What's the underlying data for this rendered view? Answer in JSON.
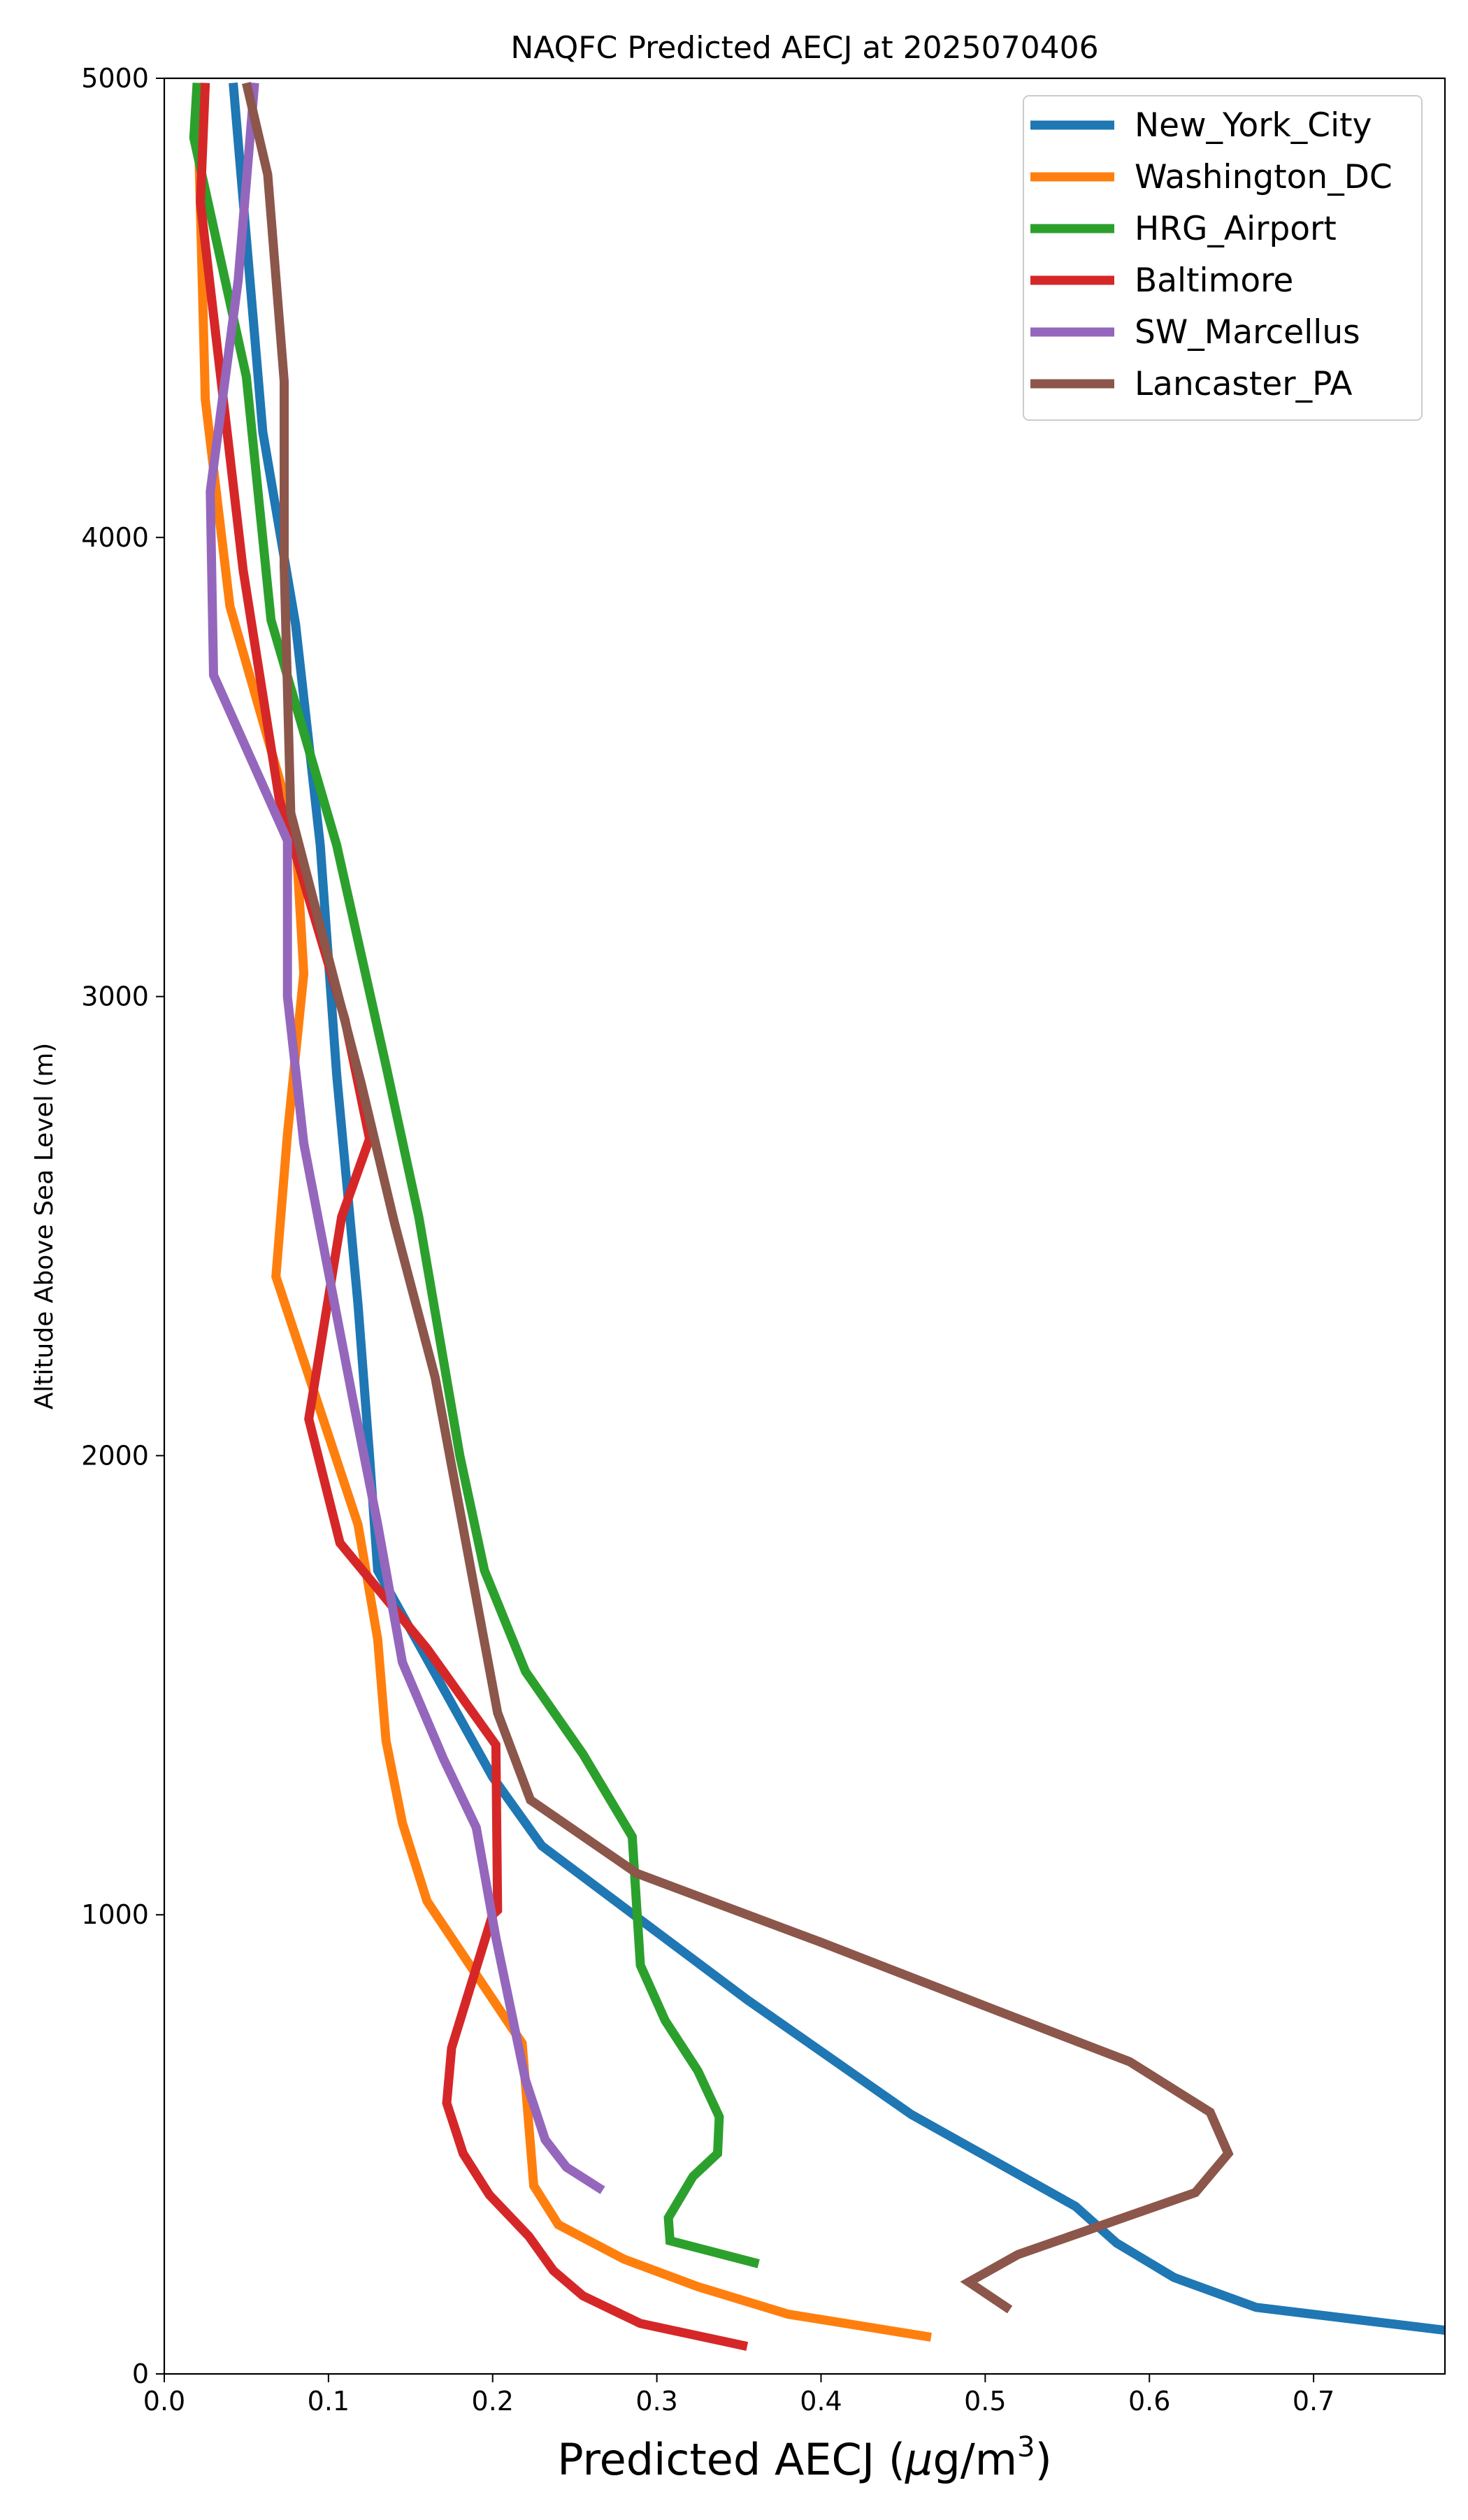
{
  "chart_data": {
    "type": "line",
    "title": "NAQFC Predicted AECJ at 2025070406",
    "xlabel": "Predicted AECJ (μg/m³)",
    "xlabel_prefix": "Predicted AECJ (",
    "xlabel_unit_mu": "μ",
    "xlabel_unit_g": "g/m",
    "xlabel_unit_exp": "3",
    "xlabel_suffix": ")",
    "ylabel": "Altitude Above Sea Level (m)",
    "xlim": [
      0.0,
      0.78
    ],
    "ylim": [
      0,
      5000
    ],
    "x_ticks": [
      0.0,
      0.1,
      0.2,
      0.3,
      0.4,
      0.5,
      0.6,
      0.7
    ],
    "x_tick_labels": [
      "0.0",
      "0.1",
      "0.2",
      "0.3",
      "0.4",
      "0.5",
      "0.6",
      "0.7"
    ],
    "y_ticks": [
      0,
      1000,
      2000,
      3000,
      4000,
      5000
    ],
    "y_tick_labels": [
      "0",
      "1000",
      "2000",
      "3000",
      "4000",
      "5000"
    ],
    "grid": false,
    "legend_position": "top-right",
    "series": [
      {
        "name": "New_York_City",
        "color": "#1f77b4",
        "points": [
          [
            0.78,
            95
          ],
          [
            0.665,
            145
          ],
          [
            0.615,
            210
          ],
          [
            0.58,
            285
          ],
          [
            0.555,
            365
          ],
          [
            0.455,
            565
          ],
          [
            0.355,
            815
          ],
          [
            0.23,
            1150
          ],
          [
            0.2,
            1300
          ],
          [
            0.13,
            1750
          ],
          [
            0.125,
            2000
          ],
          [
            0.118,
            2330
          ],
          [
            0.105,
            2830
          ],
          [
            0.095,
            3330
          ],
          [
            0.08,
            3810
          ],
          [
            0.06,
            4230
          ],
          [
            0.042,
            4990
          ]
        ]
      },
      {
        "name": "Washington_DC",
        "color": "#ff7f0e",
        "points": [
          [
            0.467,
            80
          ],
          [
            0.38,
            130
          ],
          [
            0.325,
            190
          ],
          [
            0.28,
            250
          ],
          [
            0.24,
            325
          ],
          [
            0.225,
            410
          ],
          [
            0.218,
            720
          ],
          [
            0.16,
            1030
          ],
          [
            0.145,
            1200
          ],
          [
            0.135,
            1380
          ],
          [
            0.13,
            1600
          ],
          [
            0.118,
            1850
          ],
          [
            0.068,
            2390
          ],
          [
            0.075,
            2700
          ],
          [
            0.085,
            3050
          ],
          [
            0.08,
            3350
          ],
          [
            0.04,
            3850
          ],
          [
            0.025,
            4300
          ],
          [
            0.02,
            4990
          ]
        ]
      },
      {
        "name": "HRG_Airport",
        "color": "#2ca02c",
        "points": [
          [
            0.362,
            240
          ],
          [
            0.308,
            290
          ],
          [
            0.307,
            340
          ],
          [
            0.322,
            430
          ],
          [
            0.337,
            480
          ],
          [
            0.338,
            560
          ],
          [
            0.325,
            660
          ],
          [
            0.305,
            770
          ],
          [
            0.29,
            890
          ],
          [
            0.285,
            1170
          ],
          [
            0.255,
            1350
          ],
          [
            0.22,
            1530
          ],
          [
            0.195,
            1750
          ],
          [
            0.18,
            2000
          ],
          [
            0.155,
            2520
          ],
          [
            0.135,
            2850
          ],
          [
            0.105,
            3330
          ],
          [
            0.065,
            3820
          ],
          [
            0.05,
            4350
          ],
          [
            0.018,
            4870
          ],
          [
            0.02,
            4990
          ]
        ]
      },
      {
        "name": "Baltimore",
        "color": "#d62728",
        "points": [
          [
            0.355,
            60
          ],
          [
            0.29,
            110
          ],
          [
            0.255,
            170
          ],
          [
            0.237,
            225
          ],
          [
            0.222,
            300
          ],
          [
            0.198,
            390
          ],
          [
            0.182,
            480
          ],
          [
            0.172,
            590
          ],
          [
            0.175,
            710
          ],
          [
            0.2,
            1000
          ],
          [
            0.203,
            1010
          ],
          [
            0.202,
            1370
          ],
          [
            0.16,
            1580
          ],
          [
            0.107,
            1810
          ],
          [
            0.088,
            2080
          ],
          [
            0.108,
            2520
          ],
          [
            0.125,
            2690
          ],
          [
            0.11,
            2950
          ],
          [
            0.07,
            3430
          ],
          [
            0.048,
            3930
          ],
          [
            0.022,
            4730
          ],
          [
            0.025,
            4990
          ]
        ]
      },
      {
        "name": "SW_Marcellus",
        "color": "#9467bd",
        "points": [
          [
            0.267,
            400
          ],
          [
            0.245,
            450
          ],
          [
            0.232,
            510
          ],
          [
            0.22,
            640
          ],
          [
            0.202,
            950
          ],
          [
            0.19,
            1190
          ],
          [
            0.17,
            1340
          ],
          [
            0.145,
            1550
          ],
          [
            0.13,
            1850
          ],
          [
            0.115,
            2120
          ],
          [
            0.085,
            2680
          ],
          [
            0.075,
            3000
          ],
          [
            0.075,
            3340
          ],
          [
            0.03,
            3700
          ],
          [
            0.028,
            4100
          ],
          [
            0.045,
            4560
          ],
          [
            0.055,
            4990
          ]
        ]
      },
      {
        "name": "Lancaster_PA",
        "color": "#8c564b",
        "points": [
          [
            0.515,
            140
          ],
          [
            0.49,
            200
          ],
          [
            0.52,
            260
          ],
          [
            0.628,
            395
          ],
          [
            0.648,
            480
          ],
          [
            0.637,
            570
          ],
          [
            0.588,
            680
          ],
          [
            0.508,
            790
          ],
          [
            0.4,
            940
          ],
          [
            0.288,
            1090
          ],
          [
            0.223,
            1250
          ],
          [
            0.203,
            1440
          ],
          [
            0.165,
            2170
          ],
          [
            0.14,
            2510
          ],
          [
            0.12,
            2810
          ],
          [
            0.077,
            3400
          ],
          [
            0.073,
            3940
          ],
          [
            0.073,
            4340
          ],
          [
            0.063,
            4790
          ],
          [
            0.05,
            4990
          ]
        ]
      }
    ]
  }
}
